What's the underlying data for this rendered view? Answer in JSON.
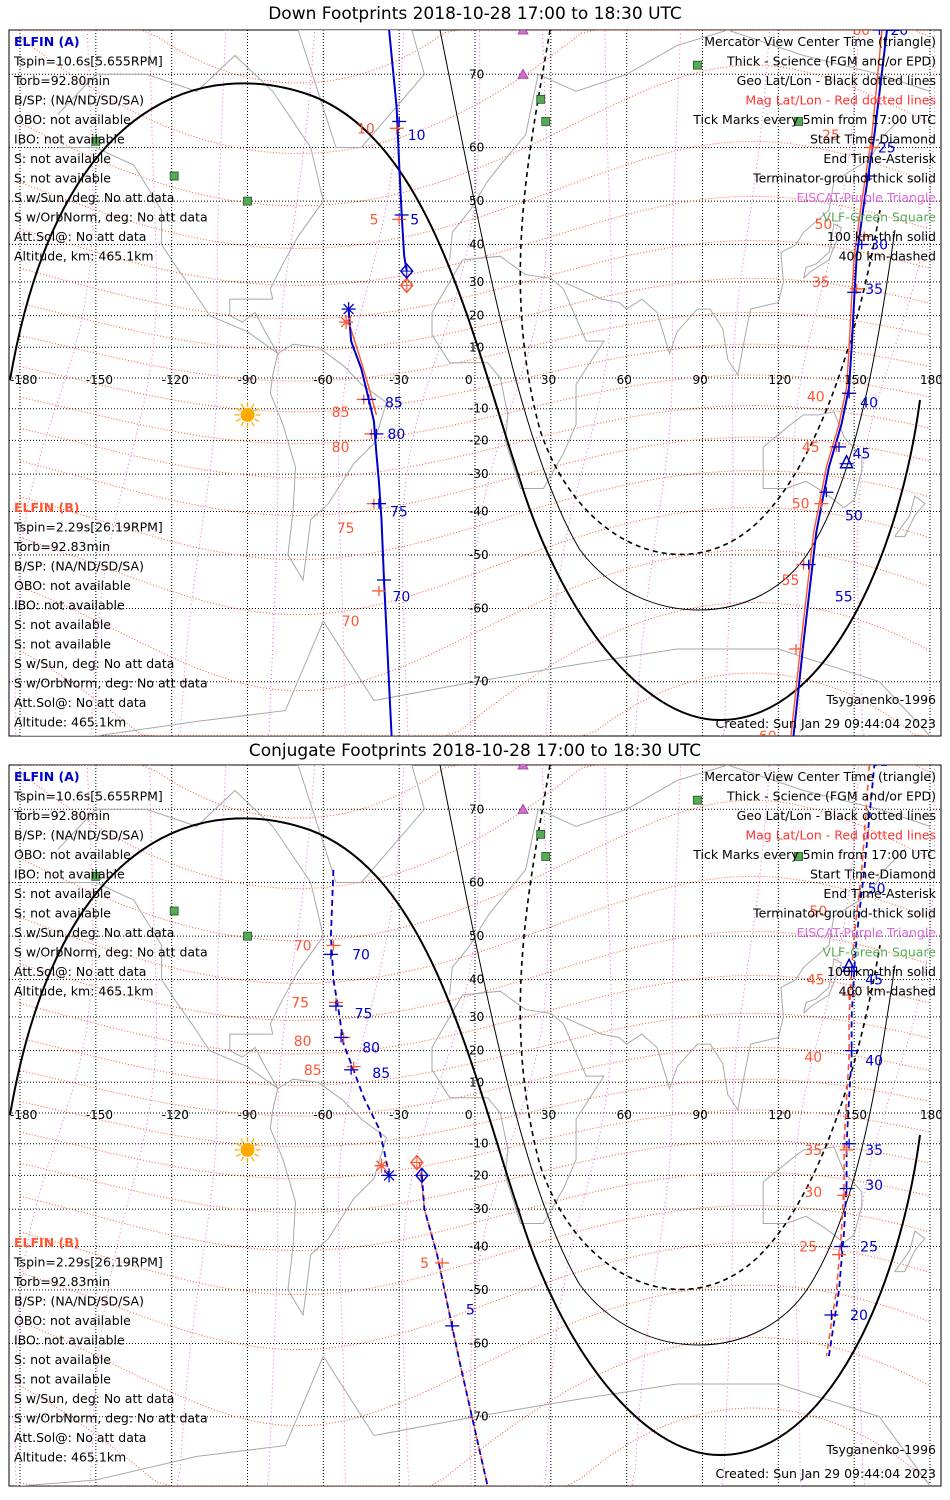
{
  "colors": {
    "blue": "#0000cc",
    "red": "#ff5533",
    "black": "#000000",
    "magenta": "#dd66dd",
    "green": "#55aa55",
    "sun": "#ffaa00",
    "coast": "#a8a8a8"
  },
  "lon_ticks": [
    "-180",
    "-150",
    "-120",
    "-90",
    "-60",
    "-30",
    "0",
    "30",
    "60",
    "90",
    "120",
    "150",
    "180"
  ],
  "lat_ticks": [
    "70",
    "60",
    "50",
    "40",
    "30",
    "20",
    "10",
    "0",
    "-10",
    "-20",
    "-30",
    "-40",
    "-50",
    "-60",
    "-70"
  ],
  "legend_right": [
    {
      "text": "Mercator View Center Time (triangle)",
      "color": "#000000"
    },
    {
      "text": "Thick - Science (FGM and/or EPD)",
      "color": "#000000"
    },
    {
      "text": "Geo Lat/Lon - Black dotted lines",
      "color": "#000000"
    },
    {
      "text": "Mag Lat/Lon - Red dotted lines",
      "color": "#ff3333"
    },
    {
      "text": "Tick Marks every 5min from 17:00 UTC",
      "color": "#000000"
    },
    {
      "text": "Start Time-Diamond",
      "color": "#000000"
    },
    {
      "text": "End Time-Asterisk",
      "color": "#000000"
    },
    {
      "text": "Terminator-ground-thick solid",
      "color": "#000000"
    },
    {
      "text": "EISCAT-Purple Triangle",
      "color": "#dd66dd"
    },
    {
      "text": "VLF-Green Square",
      "color": "#55aa55"
    },
    {
      "text": "100 km-thin solid",
      "color": "#000000"
    },
    {
      "text": "400 km-dashed",
      "color": "#000000"
    }
  ],
  "info_a": [
    {
      "text": "ELFIN (A)",
      "color": "#0000cc"
    },
    {
      "text": "Tspin=10.6s[5.655RPM]",
      "color": "#000000"
    },
    {
      "text": "Torb=92.80min",
      "color": "#000000"
    },
    {
      "text": "B/SP: (NA/ND/SD/SA)",
      "color": "#000000"
    },
    {
      "text": "OBO: not available",
      "color": "#000000"
    },
    {
      "text": "IBO: not available",
      "color": "#000000"
    },
    {
      "text": "S: not available",
      "color": "#000000"
    },
    {
      "text": "S: not available",
      "color": "#000000"
    },
    {
      "text": "S w/Sun, deg: No att data",
      "color": "#000000"
    },
    {
      "text": "S w/OrbNorm, deg: No att data",
      "color": "#000000"
    },
    {
      "text": "Att.Sol@: No att data",
      "color": "#000000"
    },
    {
      "text": "Altitude, km: 465.1km",
      "color": "#000000"
    }
  ],
  "info_b": [
    {
      "text": "ELFIN (B)",
      "color": "#ff5533"
    },
    {
      "text": "Tspin=2.29s[26.19RPM]",
      "color": "#000000"
    },
    {
      "text": "Torb=92.83min",
      "color": "#000000"
    },
    {
      "text": "B/SP: (NA/ND/SD/SA)",
      "color": "#000000"
    },
    {
      "text": "OBO: not available",
      "color": "#000000"
    },
    {
      "text": "IBO: not available",
      "color": "#000000"
    },
    {
      "text": "S: not available",
      "color": "#000000"
    },
    {
      "text": "S: not available",
      "color": "#000000"
    },
    {
      "text": "S w/Sun, deg: No att data",
      "color": "#000000"
    },
    {
      "text": "S w/OrbNorm, deg: No att data",
      "color": "#000000"
    },
    {
      "text": "Att.Sol@: No att data",
      "color": "#000000"
    },
    {
      "text": "Altitude: 465.1km",
      "color": "#000000"
    }
  ],
  "model": "Tsyganenko-1996",
  "created": "Created: Sun Jan 29 09:44:04 2023",
  "panels": [
    {
      "title": "Down Footprints 2018-10-28 17:00 to 18:30 UTC",
      "a_tracks": [
        [
          [
            -34,
            75
          ],
          [
            -31,
            66
          ],
          [
            -30,
            57
          ],
          [
            -29,
            47
          ],
          [
            -28,
            37
          ],
          [
            -27,
            33
          ]
        ],
        [
          [
            -50,
            22
          ],
          [
            -49,
            12
          ],
          [
            -45,
            3
          ],
          [
            -42,
            -7
          ],
          [
            -40,
            -14
          ],
          [
            -39,
            -24
          ],
          [
            -38,
            -32
          ],
          [
            -37,
            -42
          ],
          [
            -36,
            -55
          ],
          [
            -33,
            -78
          ]
        ],
        [
          [
            168,
            88
          ],
          [
            163,
            75
          ],
          [
            158,
            62
          ],
          [
            154,
            50
          ],
          [
            151,
            37
          ],
          [
            150,
            25
          ],
          [
            149,
            10
          ],
          [
            148,
            -3
          ],
          [
            145,
            -15
          ],
          [
            140,
            -28
          ],
          [
            135,
            -45
          ],
          [
            130,
            -65
          ],
          [
            126,
            -80
          ]
        ]
      ],
      "b_tracks": [
        [
          [
            -50,
            18
          ],
          [
            -46,
            8
          ],
          [
            -42,
            -3
          ],
          [
            -39,
            -12
          ]
        ],
        [
          [
            165,
            88
          ],
          [
            161,
            75
          ],
          [
            157,
            62
          ],
          [
            153,
            50
          ],
          [
            150,
            37
          ],
          [
            149,
            25
          ],
          [
            148,
            10
          ],
          [
            147,
            -3
          ],
          [
            144,
            -15
          ],
          [
            139,
            -28
          ],
          [
            134,
            -45
          ],
          [
            129,
            -65
          ],
          [
            125,
            -80
          ]
        ]
      ],
      "dashed": false,
      "a_labels": [
        {
          "t": "10",
          "lon": -29,
          "lat": 62
        },
        {
          "t": "5",
          "lon": -28,
          "lat": 46
        },
        {
          "t": "85",
          "lon": -38,
          "lat": -8
        },
        {
          "t": "80",
          "lon": -37,
          "lat": -18
        },
        {
          "t": "75",
          "lon": -36,
          "lat": -40
        },
        {
          "t": "70",
          "lon": -35,
          "lat": -58
        },
        {
          "t": "20",
          "lon": 162,
          "lat": 79
        },
        {
          "t": "25",
          "lon": 157,
          "lat": 60
        },
        {
          "t": "30",
          "lon": 154,
          "lat": 40
        },
        {
          "t": "35",
          "lon": 152,
          "lat": 28
        },
        {
          "t": "40",
          "lon": 150,
          "lat": -8
        },
        {
          "t": "45",
          "lon": 147,
          "lat": -24
        },
        {
          "t": "50",
          "lon": 144,
          "lat": -41
        },
        {
          "t": "55",
          "lon": 140,
          "lat": -58
        }
      ],
      "b_labels": [
        {
          "t": "10",
          "lon": -38,
          "lat": 63
        },
        {
          "t": "5",
          "lon": -33,
          "lat": 46
        },
        {
          "t": "85",
          "lon": -48,
          "lat": -11
        },
        {
          "t": "80",
          "lon": -48,
          "lat": -22
        },
        {
          "t": "75",
          "lon": -46,
          "lat": -44
        },
        {
          "t": "70",
          "lon": -44,
          "lat": -62
        },
        {
          "t": "60",
          "lon": 158,
          "lat": 80
        },
        {
          "t": "25",
          "lon": 146,
          "lat": 62
        },
        {
          "t": "50",
          "lon": 143,
          "lat": 45
        },
        {
          "t": "35",
          "lon": 142,
          "lat": 30
        },
        {
          "t": "40",
          "lon": 140,
          "lat": -6
        },
        {
          "t": "45",
          "lon": 138,
          "lat": -22
        },
        {
          "t": "50",
          "lon": 134,
          "lat": -38
        },
        {
          "t": "55",
          "lon": 130,
          "lat": -55
        },
        {
          "t": "60",
          "lon": 121,
          "lat": -78
        }
      ],
      "a_ticks": [
        [
          -30,
          64
        ],
        [
          -29,
          47
        ],
        [
          -42,
          -7
        ],
        [
          -39,
          -18
        ],
        [
          -38,
          -38
        ],
        [
          -36,
          -55
        ],
        [
          160,
          75
        ],
        [
          156,
          55
        ],
        [
          153,
          40
        ],
        [
          150,
          27
        ],
        [
          148,
          -5
        ],
        [
          144,
          -22
        ],
        [
          139,
          -35
        ],
        [
          132,
          -52
        ]
      ],
      "b_ticks": [
        [
          -31,
          63
        ],
        [
          -30,
          46
        ],
        [
          -44,
          -7
        ],
        [
          -41,
          -18
        ],
        [
          -40,
          -38
        ],
        [
          -38,
          -57
        ],
        [
          157,
          60
        ],
        [
          154,
          42
        ],
        [
          151,
          28
        ],
        [
          148,
          -5
        ],
        [
          143,
          -22
        ],
        [
          137,
          -38
        ],
        [
          130,
          -52
        ],
        [
          127,
          -66
        ]
      ],
      "start_a": [
        -27,
        33
      ],
      "start_b": [
        -27,
        29
      ],
      "end_a": [
        -50,
        22
      ],
      "end_b": [
        -51,
        18
      ],
      "triangle": [
        147,
        -27
      ]
    },
    {
      "title": "Conjugate Footprints 2018-10-28 17:00 to 18:30 UTC",
      "a_tracks": [
        [
          [
            -56,
            62
          ],
          [
            -57,
            50
          ],
          [
            -56,
            40
          ],
          [
            -54,
            32
          ],
          [
            -52,
            22
          ],
          [
            -49,
            16
          ],
          [
            -44,
            5
          ],
          [
            -38,
            -5
          ],
          [
            -36,
            -12
          ],
          [
            -34,
            -20
          ]
        ],
        [
          [
            -21,
            -20
          ],
          [
            -20,
            -30
          ],
          [
            -15,
            -42
          ],
          [
            -10,
            -55
          ],
          [
            -6,
            -63
          ],
          [
            5,
            -78
          ]
        ],
        [
          [
            163,
            88
          ],
          [
            158,
            75
          ],
          [
            154,
            62
          ],
          [
            151,
            50
          ],
          [
            150,
            42
          ],
          [
            149,
            30
          ],
          [
            149,
            18
          ],
          [
            148,
            5
          ],
          [
            147,
            -10
          ],
          [
            147,
            -22
          ],
          [
            146,
            -36
          ],
          [
            144,
            -50
          ],
          [
            140,
            -62
          ]
        ]
      ],
      "b_tracks": [
        [
          [
            -56,
            62
          ],
          [
            -57,
            50
          ],
          [
            -56,
            40
          ],
          [
            -54,
            32
          ],
          [
            -52,
            22
          ],
          [
            -49,
            16
          ],
          [
            -44,
            5
          ],
          [
            -38,
            -5
          ],
          [
            -36,
            -12
          ]
        ],
        [
          [
            -22,
            -16
          ],
          [
            -20,
            -30
          ],
          [
            -15,
            -42
          ],
          [
            -10,
            -55
          ],
          [
            -6,
            -63
          ],
          [
            5,
            -78
          ]
        ],
        [
          [
            160,
            88
          ],
          [
            156,
            75
          ],
          [
            153,
            62
          ],
          [
            150,
            50
          ],
          [
            149,
            42
          ],
          [
            148,
            30
          ],
          [
            148,
            18
          ],
          [
            147,
            5
          ],
          [
            146,
            -10
          ],
          [
            146,
            -22
          ],
          [
            145,
            -36
          ],
          [
            143,
            -50
          ],
          [
            139,
            -62
          ]
        ]
      ],
      "dashed": true,
      "a_labels": [
        {
          "t": "70",
          "lon": -51,
          "lat": 46
        },
        {
          "t": "75",
          "lon": -50,
          "lat": 31
        },
        {
          "t": "80",
          "lon": -47,
          "lat": 21
        },
        {
          "t": "85",
          "lon": -43,
          "lat": 13
        },
        {
          "t": "5",
          "lon": -6,
          "lat": -54
        },
        {
          "t": "50",
          "lon": 153,
          "lat": 59
        },
        {
          "t": "45",
          "lon": 152,
          "lat": 40
        },
        {
          "t": "40",
          "lon": 152,
          "lat": 17
        },
        {
          "t": "35",
          "lon": 152,
          "lat": -12
        },
        {
          "t": "30",
          "lon": 152,
          "lat": -23
        },
        {
          "t": "25",
          "lon": 150,
          "lat": -40
        },
        {
          "t": "20",
          "lon": 146,
          "lat": -55
        }
      ],
      "b_labels": [
        {
          "t": "70",
          "lon": -63,
          "lat": 48
        },
        {
          "t": "75",
          "lon": -64,
          "lat": 34
        },
        {
          "t": "80",
          "lon": -63,
          "lat": 23
        },
        {
          "t": "85",
          "lon": -59,
          "lat": 14
        },
        {
          "t": "5",
          "lon": -13,
          "lat": -44
        },
        {
          "t": "50",
          "lon": 141,
          "lat": 55
        },
        {
          "t": "45",
          "lon": 140,
          "lat": 40
        },
        {
          "t": "40",
          "lon": 139,
          "lat": 18
        },
        {
          "t": "35",
          "lon": 139,
          "lat": -12
        },
        {
          "t": "30",
          "lon": 139,
          "lat": -25
        },
        {
          "t": "25",
          "lon": 137,
          "lat": -40
        }
      ],
      "a_ticks": [
        [
          -57,
          46
        ],
        [
          -55,
          33
        ],
        [
          -53,
          24
        ],
        [
          -49,
          14
        ],
        [
          -9,
          -57
        ],
        [
          149,
          42
        ],
        [
          149,
          20
        ],
        [
          148,
          -10
        ],
        [
          147,
          -24
        ],
        [
          145,
          -40
        ],
        [
          141,
          -55
        ]
      ],
      "b_ticks": [
        [
          -56,
          48
        ],
        [
          -55,
          34
        ],
        [
          -52,
          24
        ],
        [
          -48,
          15
        ],
        [
          -13,
          -44
        ],
        [
          148,
          42
        ],
        [
          148,
          36
        ],
        [
          147,
          -12
        ],
        [
          146,
          -26
        ],
        [
          144,
          -42
        ]
      ],
      "start_a": [
        -21,
        -20
      ],
      "start_b": [
        -23,
        -16
      ],
      "end_a": [
        -34,
        -20
      ],
      "end_b": [
        -37,
        -17
      ],
      "triangle": [
        148,
        43
      ]
    }
  ]
}
